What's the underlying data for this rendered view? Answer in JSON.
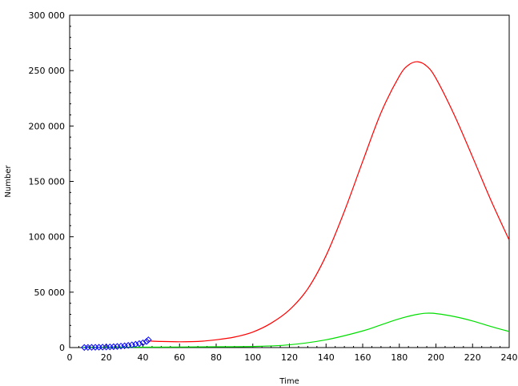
{
  "chart_data": {
    "type": "line",
    "xlabel": "Time",
    "ylabel": "Number",
    "xlim": [
      0,
      240
    ],
    "ylim": [
      0,
      300000
    ],
    "x_ticks": [
      0,
      20,
      40,
      60,
      80,
      100,
      120,
      140,
      160,
      180,
      200,
      220,
      240
    ],
    "x_tick_labels": [
      "0",
      "20",
      "40",
      "60",
      "80",
      "100",
      "120",
      "140",
      "160",
      "180",
      "200",
      "220",
      "240"
    ],
    "y_ticks": [
      0,
      50000,
      100000,
      150000,
      200000,
      250000,
      300000
    ],
    "y_tick_labels": [
      "0",
      "50 000",
      "100 000",
      "150 000",
      "200 000",
      "250 000",
      "300 000"
    ],
    "grid": false,
    "legend": "none",
    "series": [
      {
        "style": "line",
        "color": "#ff0000",
        "x": [
          43,
          50,
          60,
          70,
          80,
          90,
          100,
          110,
          120,
          130,
          140,
          150,
          160,
          170,
          180,
          185,
          190,
          195,
          200,
          210,
          220,
          230,
          240
        ],
        "y": [
          6000,
          5500,
          5200,
          5500,
          7000,
          9500,
          14000,
          22000,
          34000,
          53000,
          83000,
          123000,
          168000,
          212000,
          245000,
          255000,
          258000,
          254000,
          243000,
          210000,
          172000,
          133000,
          97000
        ]
      },
      {
        "style": "line",
        "color": "#00dd00",
        "x": [
          7,
          20,
          40,
          60,
          80,
          100,
          120,
          140,
          160,
          170,
          180,
          190,
          198,
          210,
          220,
          230,
          240
        ],
        "y": [
          200,
          250,
          350,
          500,
          700,
          1000,
          2500,
          7000,
          15000,
          20500,
          26000,
          30000,
          31000,
          28000,
          24000,
          19000,
          14500
        ]
      },
      {
        "style": "markers",
        "marker": "diamond",
        "color": "#0000ff",
        "x": [
          8,
          10,
          12,
          14,
          16,
          18,
          20,
          22,
          24,
          26,
          28,
          30,
          32,
          34,
          36,
          38,
          40,
          42,
          43
        ],
        "y": [
          100,
          150,
          200,
          250,
          300,
          400,
          500,
          600,
          800,
          1000,
          1300,
          1600,
          2000,
          2500,
          3000,
          3600,
          4300,
          5500,
          7000
        ]
      }
    ]
  }
}
